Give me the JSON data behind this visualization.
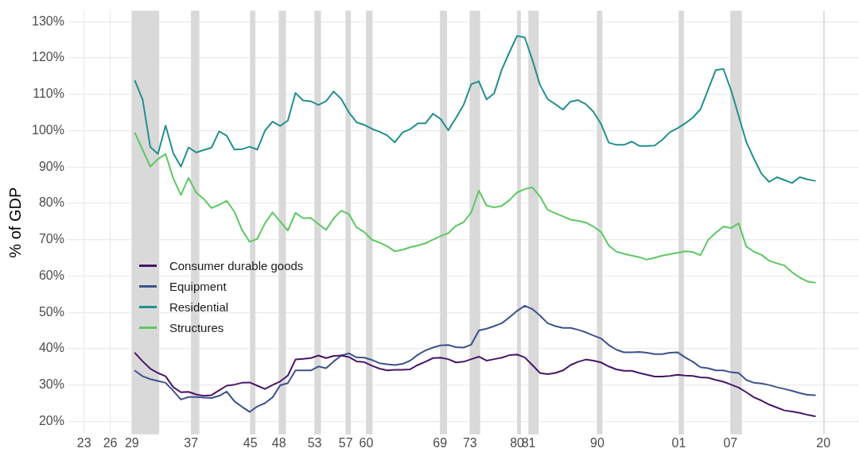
{
  "chart_data": {
    "type": "line",
    "ylabel": "% of GDP",
    "x": [
      "1930",
      "1931",
      "1932",
      "1933",
      "1934",
      "1935",
      "1936",
      "1937",
      "1938",
      "1939",
      "1940",
      "1941",
      "1942",
      "1943",
      "1944",
      "1945",
      "1946",
      "1947",
      "1948",
      "1949",
      "1950",
      "1951",
      "1952",
      "1953",
      "1954",
      "1955",
      "1956",
      "1957",
      "1958",
      "1959",
      "1960",
      "1961",
      "1962",
      "1963",
      "1964",
      "1965",
      "1966",
      "1967",
      "1968",
      "1969",
      "1970",
      "1971",
      "1972",
      "1973",
      "1974",
      "1975",
      "1976",
      "1977",
      "1978",
      "1979",
      "1980",
      "1981",
      "1982",
      "1983",
      "1984",
      "1985",
      "1986",
      "1987",
      "1988",
      "1989",
      "1990",
      "1991",
      "1992",
      "1993",
      "1994",
      "1995",
      "1996",
      "1997",
      "1998",
      "1999",
      "2000",
      "2001",
      "2002",
      "2003",
      "2004",
      "2005",
      "2006",
      "2007",
      "2008",
      "2009",
      "2010",
      "2011",
      "2012",
      "2013",
      "2014",
      "2015",
      "2016",
      "2017",
      "2018",
      "2019"
    ],
    "series": [
      {
        "name": "Consumer durable goods",
        "color": "#481567",
        "values": [
          38.8,
          36.5,
          34.5,
          33.3,
          32.4,
          29.4,
          28,
          28.1,
          27.4,
          27,
          27.2,
          28.5,
          29.8,
          30.1,
          30.6,
          30.7,
          29.8,
          28.9,
          30,
          31,
          32.6,
          37,
          37.2,
          37.4,
          38.1,
          37.4,
          38,
          38.1,
          37.7,
          36.5,
          36.3,
          35.3,
          34.5,
          34,
          34.2,
          34.2,
          34.3,
          35.5,
          36.4,
          37.4,
          37.5,
          37.1,
          36.2,
          36.4,
          37.1,
          37.8,
          36.7,
          37.1,
          37.5,
          38.2,
          38.4,
          37.6,
          35.5,
          33.3,
          33,
          33.3,
          34,
          35.5,
          36.4,
          37,
          36.7,
          36.2,
          35.1,
          34.3,
          33.9,
          33.9,
          33.3,
          32.8,
          32.3,
          32.3,
          32.5,
          32.8,
          32.6,
          32.5,
          32.1,
          32,
          31.4,
          30.9,
          30.1,
          29.3,
          28,
          26.6,
          25.7,
          24.6,
          23.8,
          23,
          22.7,
          22.3,
          21.8,
          21.4
        ]
      },
      {
        "name": "Equipment",
        "color": "#3b528b",
        "values": [
          33.9,
          32.4,
          31.6,
          31.1,
          30.6,
          28.4,
          26,
          26.7,
          26.7,
          26.5,
          26.4,
          27,
          28.2,
          25.5,
          24,
          22.6,
          24.1,
          25,
          26.6,
          29.9,
          30.5,
          34,
          34,
          34,
          35.1,
          34.6,
          36.5,
          38.1,
          38.7,
          37.6,
          37.5,
          36.9,
          36,
          35.7,
          35.5,
          35.8,
          36.7,
          38.3,
          39.5,
          40.3,
          40.9,
          41,
          40.4,
          40.3,
          41.1,
          45,
          45.5,
          46.2,
          47,
          48.6,
          50.4,
          51.8,
          50.9,
          49.1,
          47,
          46.2,
          45.7,
          45.7,
          45.2,
          44.5,
          43.6,
          42.8,
          41,
          39.7,
          39,
          39,
          39.1,
          38.9,
          38.5,
          38.5,
          38.9,
          39,
          37.6,
          36.4,
          34.9,
          34.6,
          34,
          34,
          33.5,
          33.3,
          31.4,
          30.6,
          30.4,
          30,
          29.4,
          28.9,
          28.4,
          27.8,
          27.3,
          27.2
        ]
      },
      {
        "name": "Residential",
        "color": "#21908d",
        "values": [
          113.7,
          108.5,
          95.5,
          93.6,
          101.4,
          93.8,
          90.1,
          95.4,
          94,
          94.7,
          95.3,
          99.8,
          98.6,
          94.8,
          94.9,
          95.6,
          94.8,
          100,
          102.5,
          101.3,
          102.8,
          110.4,
          108.3,
          108.1,
          107.1,
          108.1,
          110.8,
          108.7,
          105,
          102.3,
          101.6,
          100.5,
          99.7,
          98.7,
          96.8,
          99.5,
          100.4,
          102,
          102,
          104.7,
          103.2,
          100.1,
          103.5,
          107.1,
          112.8,
          113.6,
          108.6,
          110.3,
          116.8,
          121.6,
          126.1,
          125.7,
          119.5,
          112.6,
          108.7,
          107.3,
          105.8,
          108,
          108.4,
          107.3,
          105.2,
          101.8,
          96.7,
          96.1,
          96.1,
          97,
          95.8,
          95.8,
          95.9,
          97.5,
          99.6,
          100.7,
          102,
          103.6,
          105.9,
          111.3,
          116.7,
          117,
          111.2,
          104.1,
          96.9,
          92.3,
          88.1,
          85.9,
          87.2,
          86.4,
          85.6,
          87.2,
          86.6,
          86.2
        ]
      },
      {
        "name": "Structures",
        "color": "#5dc863",
        "values": [
          99.3,
          94.7,
          90.1,
          92.2,
          93.6,
          86.9,
          82.3,
          87,
          83,
          81.2,
          78.7,
          79.6,
          80.7,
          77.7,
          72.7,
          69.4,
          70.2,
          74.5,
          77.5,
          75,
          72.5,
          77.4,
          75.9,
          76,
          74.3,
          72.7,
          75.9,
          78,
          77,
          73.4,
          72.1,
          70,
          69.2,
          68.2,
          66.8,
          67.2,
          67.9,
          68.4,
          69,
          70,
          71,
          71.8,
          73.8,
          74.8,
          77.5,
          83.5,
          79.4,
          78.9,
          79.3,
          80.9,
          83,
          83.9,
          84.4,
          81.9,
          78.2,
          77.3,
          76.4,
          75.5,
          75.2,
          74.7,
          73.6,
          72.1,
          68.4,
          66.7,
          66.1,
          65.6,
          65.2,
          64.5,
          65,
          65.6,
          66,
          66.4,
          66.8,
          66.6,
          65.7,
          69.9,
          71.9,
          73.6,
          73.2,
          74.5,
          68.1,
          66.7,
          65.8,
          64.2,
          63.5,
          62.9,
          61,
          59.6,
          58.5,
          58.2
        ]
      }
    ],
    "xlim": [
      "1921-03",
      "2024-10"
    ],
    "xticks": [
      {
        "value": "1923-05",
        "label": "23"
      },
      {
        "value": "1926-10",
        "label": "26"
      },
      {
        "value": "1929-08",
        "label": "29"
      },
      {
        "value": "1937-05",
        "label": "37"
      },
      {
        "value": "1945-02",
        "label": "45"
      },
      {
        "value": "1948-11",
        "label": "48"
      },
      {
        "value": "1953-07",
        "label": "53"
      },
      {
        "value": "1957-08",
        "label": "57"
      },
      {
        "value": "1960-04",
        "label": "60"
      },
      {
        "value": "1969-12",
        "label": "69"
      },
      {
        "value": "1973-11",
        "label": "73"
      },
      {
        "value": "1980-01",
        "label": "80"
      },
      {
        "value": "1981-07",
        "label": "81"
      },
      {
        "value": "1990-07",
        "label": "90"
      },
      {
        "value": "2001-03",
        "label": "01"
      },
      {
        "value": "2007-12",
        "label": "07"
      },
      {
        "value": "2020-02",
        "label": "20"
      }
    ],
    "ylim": [
      16.4,
      133
    ],
    "yticks": [
      {
        "value": 20,
        "label": "20%"
      },
      {
        "value": 30,
        "label": "30%"
      },
      {
        "value": 40,
        "label": "40%"
      },
      {
        "value": 50,
        "label": "50%"
      },
      {
        "value": 60,
        "label": "60%"
      },
      {
        "value": 70,
        "label": "70%"
      },
      {
        "value": 80,
        "label": "80%"
      },
      {
        "value": 90,
        "label": "90%"
      },
      {
        "value": 100,
        "label": "100%"
      },
      {
        "value": 110,
        "label": "110%"
      },
      {
        "value": 120,
        "label": "120%"
      },
      {
        "value": 130,
        "label": "130%"
      }
    ],
    "bands": [
      {
        "axis": "x",
        "from": "1929-08",
        "to": "1933-03",
        "color": "#d9d9d9"
      },
      {
        "axis": "x",
        "from": "1937-05",
        "to": "1938-06",
        "color": "#d9d9d9"
      },
      {
        "axis": "x",
        "from": "1945-02",
        "to": "1945-10",
        "color": "#d9d9d9"
      },
      {
        "axis": "x",
        "from": "1948-11",
        "to": "1949-10",
        "color": "#d9d9d9"
      },
      {
        "axis": "x",
        "from": "1953-07",
        "to": "1954-05",
        "color": "#d9d9d9"
      },
      {
        "axis": "x",
        "from": "1957-08",
        "to": "1958-04",
        "color": "#d9d9d9"
      },
      {
        "axis": "x",
        "from": "1960-04",
        "to": "1961-02",
        "color": "#d9d9d9"
      },
      {
        "axis": "x",
        "from": "1969-12",
        "to": "1970-11",
        "color": "#d9d9d9"
      },
      {
        "axis": "x",
        "from": "1973-11",
        "to": "1975-03",
        "color": "#d9d9d9"
      },
      {
        "axis": "x",
        "from": "1980-01",
        "to": "1980-07",
        "color": "#d9d9d9"
      },
      {
        "axis": "x",
        "from": "1981-07",
        "to": "1982-11",
        "color": "#d9d9d9"
      },
      {
        "axis": "x",
        "from": "1990-07",
        "to": "1991-03",
        "color": "#d9d9d9"
      },
      {
        "axis": "x",
        "from": "2001-03",
        "to": "2001-11",
        "color": "#d9d9d9"
      },
      {
        "axis": "x",
        "from": "2007-12",
        "to": "2009-06",
        "color": "#d9d9d9"
      },
      {
        "axis": "x",
        "from": "2020-02",
        "to": "2020-04",
        "color": "#d9d9d9"
      }
    ],
    "grid": true,
    "legend": "bottom left",
    "marker": "none",
    "line_style": "solid"
  }
}
